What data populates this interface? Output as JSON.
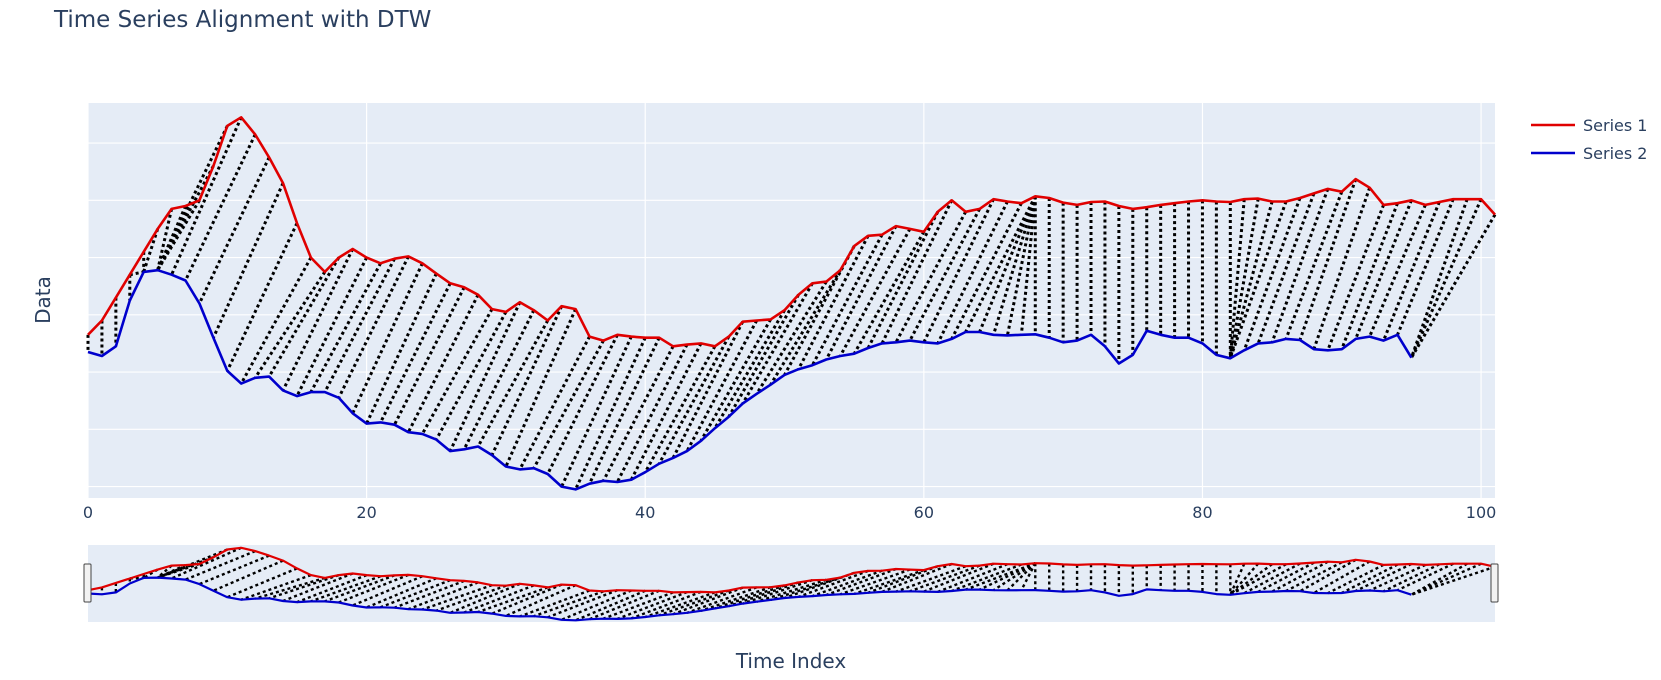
{
  "chart_data": {
    "type": "line",
    "title": "Time Series Alignment with DTW",
    "xlabel": "Time Index",
    "ylabel": "Data",
    "xlim": [
      0,
      101
    ],
    "ylim": [
      -3.2,
      3.7
    ],
    "x_ticks": [
      0,
      20,
      40,
      60,
      80,
      100
    ],
    "x_tick_labels": [
      "0",
      "20",
      "40",
      "60",
      "80",
      "100"
    ],
    "y_gridlines": [
      -3,
      -2,
      -1,
      0,
      1,
      2,
      3
    ],
    "y_ticks_labeled": false,
    "grid": true,
    "legend_position": "top-right",
    "rangeslider": true,
    "colors": {
      "series1": "#e00000",
      "series2": "#0000cc",
      "warp_lines": "#000000",
      "plot_bg": "#e5ecf6",
      "grid": "#ffffff"
    },
    "series": [
      {
        "name": "Series 1",
        "color": "#e00000",
        "x": [
          0,
          1,
          2,
          3,
          4,
          5,
          6,
          7,
          8,
          9,
          10,
          11,
          12,
          13,
          14,
          15,
          16,
          17,
          18,
          19,
          20,
          21,
          22,
          23,
          24,
          25,
          26,
          27,
          28,
          29,
          30,
          31,
          32,
          33,
          34,
          35,
          36,
          37,
          38,
          39,
          40,
          41,
          42,
          43,
          44,
          45,
          46,
          47,
          48,
          49,
          50,
          51,
          52,
          53,
          54,
          55,
          56,
          57,
          58,
          59,
          60,
          61,
          62,
          63,
          64,
          65,
          66,
          67,
          68,
          69,
          70,
          71,
          72,
          73,
          74,
          75,
          76,
          77,
          78,
          79,
          80,
          81,
          82,
          83,
          84,
          85,
          86,
          87,
          88,
          89,
          90,
          91,
          92,
          93,
          94,
          95,
          96,
          97,
          98,
          99,
          100,
          101
        ],
        "values": [
          -0.35,
          -0.1,
          0.3,
          0.7,
          1.1,
          1.5,
          1.85,
          1.9,
          2.0,
          2.6,
          3.3,
          3.45,
          3.15,
          2.75,
          2.3,
          1.6,
          1.0,
          0.75,
          1.0,
          1.15,
          1.0,
          0.9,
          0.98,
          1.02,
          0.9,
          0.72,
          0.55,
          0.48,
          0.35,
          0.1,
          0.05,
          0.22,
          0.08,
          -0.1,
          0.15,
          0.1,
          -0.38,
          -0.45,
          -0.35,
          -0.38,
          -0.4,
          -0.4,
          -0.55,
          -0.52,
          -0.5,
          -0.55,
          -0.38,
          -0.12,
          -0.1,
          -0.08,
          0.08,
          0.35,
          0.55,
          0.58,
          0.78,
          1.2,
          1.38,
          1.4,
          1.55,
          1.5,
          1.45,
          1.8,
          2.0,
          1.8,
          1.85,
          2.02,
          1.98,
          1.95,
          2.07,
          2.04,
          1.96,
          1.92,
          1.97,
          1.98,
          1.9,
          1.85,
          1.88,
          1.92,
          1.95,
          1.98,
          2.0,
          1.98,
          1.97,
          2.02,
          2.03,
          1.98,
          1.98,
          2.04,
          2.12,
          2.2,
          2.15,
          2.37,
          2.22,
          1.92,
          1.95,
          2.0,
          1.92,
          1.97,
          2.02,
          2.02,
          2.02,
          1.75
        ]
      },
      {
        "name": "Series 2",
        "color": "#0000cc",
        "x": [
          0,
          1,
          2,
          3,
          4,
          5,
          6,
          7,
          8,
          9,
          10,
          11,
          12,
          13,
          14,
          15,
          16,
          17,
          18,
          19,
          20,
          21,
          22,
          23,
          24,
          25,
          26,
          27,
          28,
          29,
          30,
          31,
          32,
          33,
          34,
          35,
          36,
          37,
          38,
          39,
          40,
          41,
          42,
          43,
          44,
          45,
          46,
          47,
          48,
          49,
          50,
          51,
          52,
          53,
          54,
          55,
          56,
          57,
          58,
          59,
          60,
          61,
          62,
          63,
          64,
          65,
          66,
          67,
          68,
          69,
          70,
          71,
          72,
          73,
          74,
          75,
          76,
          77,
          78,
          79,
          80,
          81,
          82,
          83,
          84,
          85,
          86,
          87,
          88,
          89,
          90,
          91,
          92,
          93,
          94,
          95
        ],
        "values": [
          -0.65,
          -0.72,
          -0.55,
          0.25,
          0.75,
          0.78,
          0.7,
          0.6,
          0.2,
          -0.4,
          -0.98,
          -1.2,
          -1.1,
          -1.08,
          -1.32,
          -1.42,
          -1.35,
          -1.35,
          -1.45,
          -1.72,
          -1.9,
          -1.88,
          -1.92,
          -2.05,
          -2.08,
          -2.18,
          -2.38,
          -2.35,
          -2.3,
          -2.45,
          -2.65,
          -2.7,
          -2.68,
          -2.78,
          -3.0,
          -3.05,
          -2.95,
          -2.9,
          -2.92,
          -2.88,
          -2.75,
          -2.6,
          -2.5,
          -2.38,
          -2.2,
          -1.98,
          -1.78,
          -1.55,
          -1.38,
          -1.22,
          -1.05,
          -0.95,
          -0.88,
          -0.78,
          -0.72,
          -0.68,
          -0.58,
          -0.5,
          -0.48,
          -0.45,
          -0.48,
          -0.5,
          -0.42,
          -0.3,
          -0.3,
          -0.35,
          -0.36,
          -0.35,
          -0.34,
          -0.4,
          -0.48,
          -0.45,
          -0.35,
          -0.55,
          -0.85,
          -0.7,
          -0.28,
          -0.35,
          -0.4,
          -0.4,
          -0.5,
          -0.7,
          -0.76,
          -0.62,
          -0.5,
          -0.48,
          -0.42,
          -0.44,
          -0.6,
          -0.62,
          -0.6,
          -0.42,
          -0.38,
          -0.45,
          -0.35,
          -0.75
        ]
      }
    ],
    "warping_path": [
      [
        0,
        0
      ],
      [
        1,
        1
      ],
      [
        2,
        2
      ],
      [
        3,
        3
      ],
      [
        3,
        4
      ],
      [
        4,
        4
      ],
      [
        5,
        4
      ],
      [
        6,
        5
      ],
      [
        7,
        5
      ],
      [
        8,
        5
      ],
      [
        9,
        5
      ],
      [
        10,
        5
      ],
      [
        11,
        6
      ],
      [
        12,
        7
      ],
      [
        13,
        8
      ],
      [
        14,
        9
      ],
      [
        15,
        10
      ],
      [
        16,
        11
      ],
      [
        17,
        12
      ],
      [
        18,
        13
      ],
      [
        19,
        14
      ],
      [
        20,
        15
      ],
      [
        21,
        16
      ],
      [
        22,
        17
      ],
      [
        23,
        18
      ],
      [
        24,
        19
      ],
      [
        25,
        20
      ],
      [
        26,
        21
      ],
      [
        27,
        22
      ],
      [
        28,
        23
      ],
      [
        29,
        24
      ],
      [
        30,
        25
      ],
      [
        31,
        26
      ],
      [
        32,
        27
      ],
      [
        33,
        28
      ],
      [
        34,
        29
      ],
      [
        35,
        30
      ],
      [
        36,
        31
      ],
      [
        37,
        32
      ],
      [
        38,
        33
      ],
      [
        39,
        34
      ],
      [
        40,
        35
      ],
      [
        41,
        36
      ],
      [
        42,
        37
      ],
      [
        43,
        38
      ],
      [
        44,
        39
      ],
      [
        45,
        40
      ],
      [
        46,
        41
      ],
      [
        47,
        42
      ],
      [
        48,
        43
      ],
      [
        49,
        44
      ],
      [
        50,
        45
      ],
      [
        51,
        46
      ],
      [
        52,
        47
      ],
      [
        53,
        48
      ],
      [
        54,
        49
      ],
      [
        55,
        50
      ],
      [
        56,
        51
      ],
      [
        57,
        52
      ],
      [
        58,
        53
      ],
      [
        59,
        54
      ],
      [
        60,
        55
      ],
      [
        61,
        56
      ],
      [
        62,
        57
      ],
      [
        63,
        58
      ],
      [
        64,
        59
      ],
      [
        65,
        60
      ],
      [
        66,
        61
      ],
      [
        67,
        62
      ],
      [
        68,
        63
      ],
      [
        68,
        64
      ],
      [
        68,
        65
      ],
      [
        68,
        66
      ],
      [
        68,
        67
      ],
      [
        68,
        68
      ],
      [
        69,
        69
      ],
      [
        70,
        70
      ],
      [
        71,
        71
      ],
      [
        72,
        72
      ],
      [
        73,
        73
      ],
      [
        74,
        74
      ],
      [
        75,
        75
      ],
      [
        76,
        76
      ],
      [
        77,
        77
      ],
      [
        78,
        78
      ],
      [
        79,
        79
      ],
      [
        80,
        80
      ],
      [
        81,
        81
      ],
      [
        82,
        82
      ],
      [
        83,
        82
      ],
      [
        84,
        82
      ],
      [
        85,
        82
      ],
      [
        86,
        82
      ],
      [
        87,
        83
      ],
      [
        88,
        84
      ],
      [
        89,
        85
      ],
      [
        90,
        86
      ],
      [
        91,
        87
      ],
      [
        92,
        88
      ],
      [
        93,
        89
      ],
      [
        94,
        90
      ],
      [
        95,
        91
      ],
      [
        96,
        92
      ],
      [
        97,
        93
      ],
      [
        98,
        94
      ],
      [
        99,
        95
      ],
      [
        100,
        95
      ],
      [
        101,
        95
      ]
    ]
  }
}
